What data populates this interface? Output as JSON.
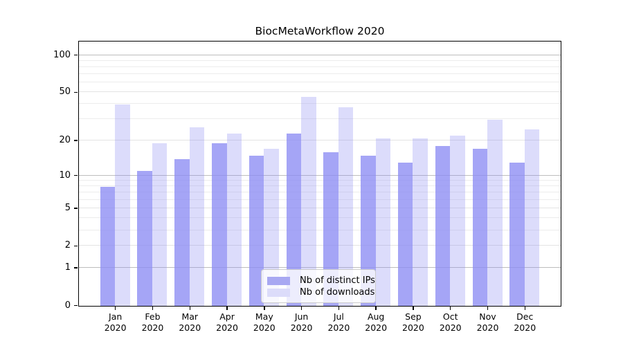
{
  "title": "BiocMetaWorkflow 2020",
  "chart_data": {
    "type": "bar",
    "title": "BiocMetaWorkflow 2020",
    "categories": [
      "Jan",
      "Feb",
      "Mar",
      "Apr",
      "May",
      "Jun",
      "Jul",
      "Aug",
      "Sep",
      "Oct",
      "Nov",
      "Dec"
    ],
    "category_year": "2020",
    "series": [
      {
        "name": "Nb of distinct IPs",
        "values": [
          8,
          11,
          14,
          19,
          15,
          23,
          16,
          15,
          13,
          18,
          17,
          13
        ],
        "fill": "rgba(140,140,243,0.78)",
        "swatch": "#a8a8f2"
      },
      {
        "name": "Nb of downloads",
        "values": [
          40,
          19,
          26,
          23,
          17,
          46,
          38,
          21,
          21,
          22,
          30,
          25
        ],
        "fill": "rgba(140,140,243,0.30)",
        "swatch": "#dcdcfa"
      }
    ],
    "yscale": "log1p",
    "ylim": [
      0,
      128
    ],
    "y_ticks": [
      0,
      1,
      2,
      5,
      10,
      20,
      50,
      100
    ],
    "y_minor_gridlines": [
      3,
      4,
      6,
      7,
      8,
      9,
      30,
      40,
      60,
      70,
      80,
      90
    ],
    "y_strong_gridlines": [
      1,
      10,
      100
    ],
    "grid": true,
    "legend_position": "inside-bottom-center",
    "xlabel": "",
    "ylabel": ""
  },
  "colors": {
    "ips_bar_rendered": "#a8a8f2",
    "downloads_bar_rendered": "#dcdcfa",
    "grid_minor": "#ececec",
    "grid_strong": "#bdbdbd",
    "axis": "#000000",
    "legend_border": "#cbcbcb"
  }
}
